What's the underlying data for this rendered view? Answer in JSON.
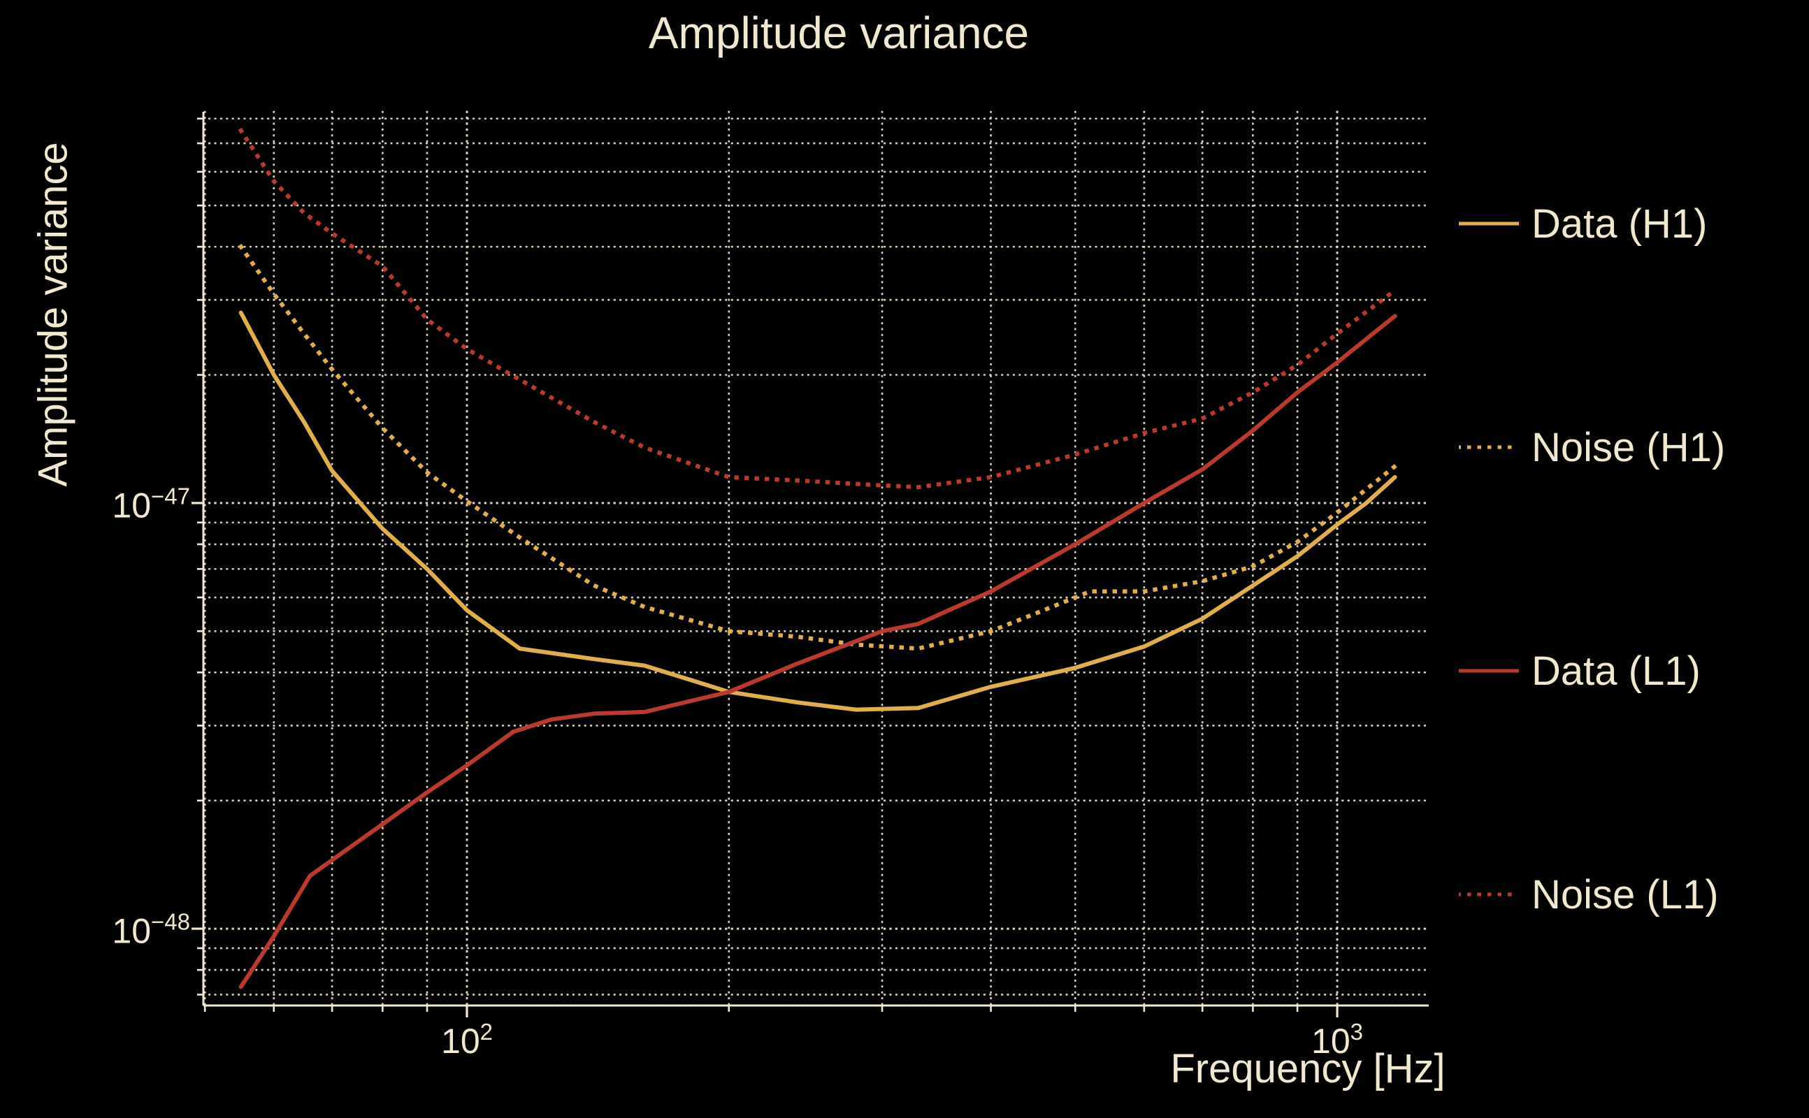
{
  "title": "Amplitude variance",
  "colors": {
    "background": "#000000",
    "text": "#F1E8CF",
    "grid": "#EDE5CB",
    "gold": "#E1AE4A",
    "red": "#BB3A2D"
  },
  "axes": {
    "x_label": "Frequency [Hz]",
    "y_label": "Amplitude variance",
    "x_ticks": [
      {
        "base": "10",
        "exp": "2"
      },
      {
        "base": "10",
        "exp": "3"
      }
    ],
    "y_ticks": [
      {
        "base": "10",
        "exp": "−47"
      },
      {
        "base": "10",
        "exp": "−48"
      }
    ]
  },
  "legend": [
    {
      "label": "Data (H1)"
    },
    {
      "label": "Noise (H1)"
    },
    {
      "label": "Data (L1)"
    },
    {
      "label": "Noise (L1)"
    }
  ],
  "chart_data": {
    "type": "line",
    "title": "Amplitude variance",
    "xlabel": "Frequency [Hz]",
    "ylabel": "Amplitude variance",
    "xscale": "log",
    "yscale": "log",
    "xlim": [
      49.8,
      1274
    ],
    "ylim": [
      6.6e-49,
      8.3e-47
    ],
    "grid": true,
    "grid_style": "dotted",
    "legend_position": "right",
    "x_major_ticks": [
      100,
      1000
    ],
    "y_major_ticks": [
      1e-47,
      1e-48
    ],
    "series": [
      {
        "name": "Data (H1)",
        "color": "#E1AE4A",
        "style": "solid",
        "points": [
          [
            55,
            2.8e-47
          ],
          [
            60,
            2e-47
          ],
          [
            65,
            1.55e-47
          ],
          [
            70,
            1.19e-47
          ],
          [
            80,
            8.7e-48
          ],
          [
            90,
            7e-48
          ],
          [
            100,
            5.6e-48
          ],
          [
            115,
            4.55e-48
          ],
          [
            140,
            4.3e-48
          ],
          [
            160,
            4.15e-48
          ],
          [
            200,
            3.6e-48
          ],
          [
            240,
            3.4e-48
          ],
          [
            280,
            3.27e-48
          ],
          [
            330,
            3.3e-48
          ],
          [
            400,
            3.7e-48
          ],
          [
            500,
            4.1e-48
          ],
          [
            600,
            4.6e-48
          ],
          [
            700,
            5.35e-48
          ],
          [
            800,
            6.4e-48
          ],
          [
            900,
            7.5e-48
          ],
          [
            1000,
            8.9e-48
          ],
          [
            1080,
            1e-47
          ],
          [
            1165,
            1.15e-47
          ]
        ]
      },
      {
        "name": "Noise (H1)",
        "color": "#E1AE4A",
        "style": "dotted",
        "points": [
          [
            55,
            4e-47
          ],
          [
            60,
            3.1e-47
          ],
          [
            65,
            2.5e-47
          ],
          [
            70,
            2.06e-47
          ],
          [
            80,
            1.5e-47
          ],
          [
            90,
            1.18e-47
          ],
          [
            100,
            1.01e-47
          ],
          [
            115,
            8.3e-48
          ],
          [
            140,
            6.4e-48
          ],
          [
            160,
            5.7e-48
          ],
          [
            200,
            5e-48
          ],
          [
            240,
            4.85e-48
          ],
          [
            280,
            4.65e-48
          ],
          [
            330,
            4.55e-48
          ],
          [
            400,
            5e-48
          ],
          [
            460,
            5.6e-48
          ],
          [
            520,
            6.2e-48
          ],
          [
            600,
            6.2e-48
          ],
          [
            700,
            6.55e-48
          ],
          [
            800,
            7.1e-48
          ],
          [
            900,
            8.1e-48
          ],
          [
            1000,
            9.5e-48
          ],
          [
            1165,
            1.22e-47
          ]
        ]
      },
      {
        "name": "Data (L1)",
        "color": "#BB3A2D",
        "style": "solid",
        "points": [
          [
            55,
            7.3e-49
          ],
          [
            60,
            9.6e-49
          ],
          [
            66,
            1.33e-48
          ],
          [
            70,
            1.45e-48
          ],
          [
            80,
            1.76e-48
          ],
          [
            90,
            2.09e-48
          ],
          [
            100,
            2.42e-48
          ],
          [
            113,
            2.9e-48
          ],
          [
            125,
            3.1e-48
          ],
          [
            140,
            3.2e-48
          ],
          [
            160,
            3.23e-48
          ],
          [
            200,
            3.6e-48
          ],
          [
            240,
            4.2e-48
          ],
          [
            300,
            5e-48
          ],
          [
            330,
            5.2e-48
          ],
          [
            400,
            6.2e-48
          ],
          [
            500,
            8e-48
          ],
          [
            600,
            1e-47
          ],
          [
            700,
            1.2e-47
          ],
          [
            800,
            1.48e-47
          ],
          [
            900,
            1.82e-47
          ],
          [
            1000,
            2.14e-47
          ],
          [
            1165,
            2.75e-47
          ]
        ]
      },
      {
        "name": "Noise (L1)",
        "color": "#BB3A2D",
        "style": "dotted",
        "points": [
          [
            55,
            7.5e-47
          ],
          [
            60,
            5.7e-47
          ],
          [
            65,
            4.8e-47
          ],
          [
            70,
            4.3e-47
          ],
          [
            80,
            3.6e-47
          ],
          [
            90,
            2.7e-47
          ],
          [
            100,
            2.3e-47
          ],
          [
            115,
            1.95e-47
          ],
          [
            140,
            1.55e-47
          ],
          [
            160,
            1.35e-47
          ],
          [
            200,
            1.15e-47
          ],
          [
            240,
            1.13e-47
          ],
          [
            300,
            1.1e-47
          ],
          [
            330,
            1.09e-47
          ],
          [
            400,
            1.15e-47
          ],
          [
            500,
            1.3e-47
          ],
          [
            600,
            1.46e-47
          ],
          [
            700,
            1.58e-47
          ],
          [
            800,
            1.82e-47
          ],
          [
            900,
            2.11e-47
          ],
          [
            1000,
            2.5e-47
          ],
          [
            1165,
            3.16e-47
          ]
        ]
      }
    ]
  }
}
